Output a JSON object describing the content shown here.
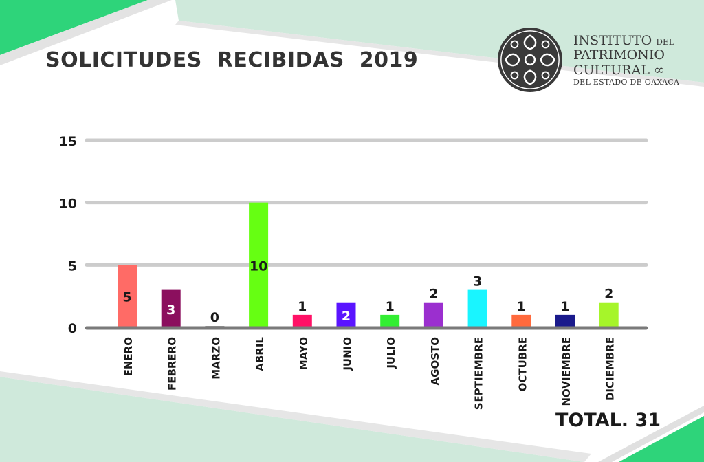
{
  "header": {
    "title": "SOLICITUDES  RECIBIDAS  2019"
  },
  "logo": {
    "line1_main": "INSTITUTO",
    "line1_small": "DEL",
    "line2": "PATRIMONIO",
    "line3": "CULTURAL",
    "line4": "DEL ESTADO DE OAXACA"
  },
  "colors": {
    "accent_green": "#2ed47a",
    "light_green": "#cfe9db",
    "grid": "#cccccc",
    "axis": "#7a7a7a"
  },
  "chart_data": {
    "type": "bar",
    "title": "SOLICITUDES  RECIBIDAS  2019",
    "xlabel": "",
    "ylabel": "",
    "ylim": [
      0,
      15
    ],
    "yticks": [
      0,
      5,
      10,
      15
    ],
    "grid": true,
    "categories": [
      "ENERO",
      "FEBRERO",
      "MARZO",
      "ABRIL",
      "MAYO",
      "JUNIO",
      "JULIO",
      "AGOSTO",
      "SEPTIEMBRE",
      "OCTUBRE",
      "NOVIEMBRE",
      "DICIEMBRE"
    ],
    "values": [
      5,
      3,
      0,
      10,
      1,
      2,
      1,
      2,
      3,
      1,
      1,
      2
    ],
    "bar_colors": [
      "#ff6b66",
      "#8b0f5e",
      "#9a9a9a",
      "#66ff12",
      "#ff1166",
      "#5a14ff",
      "#33ee33",
      "#9b2fcf",
      "#19f5ff",
      "#ff6a3d",
      "#1a1a8c",
      "#a6f52a"
    ],
    "label_colors": [
      "#1a1a1a",
      "#ffffff",
      "#1a1a1a",
      "#1a1a1a",
      "#1a1a1a",
      "#ffffff",
      "#1a1a1a",
      "#1a1a1a",
      "#1a1a1a",
      "#1a1a1a",
      "#1a1a1a",
      "#1a1a1a"
    ],
    "label_positions": [
      "inside",
      "inside",
      "above",
      "inside",
      "above",
      "inside",
      "above",
      "above",
      "above",
      "above",
      "above",
      "above"
    ]
  },
  "footer": {
    "total_label": "TOTAL. 31"
  }
}
